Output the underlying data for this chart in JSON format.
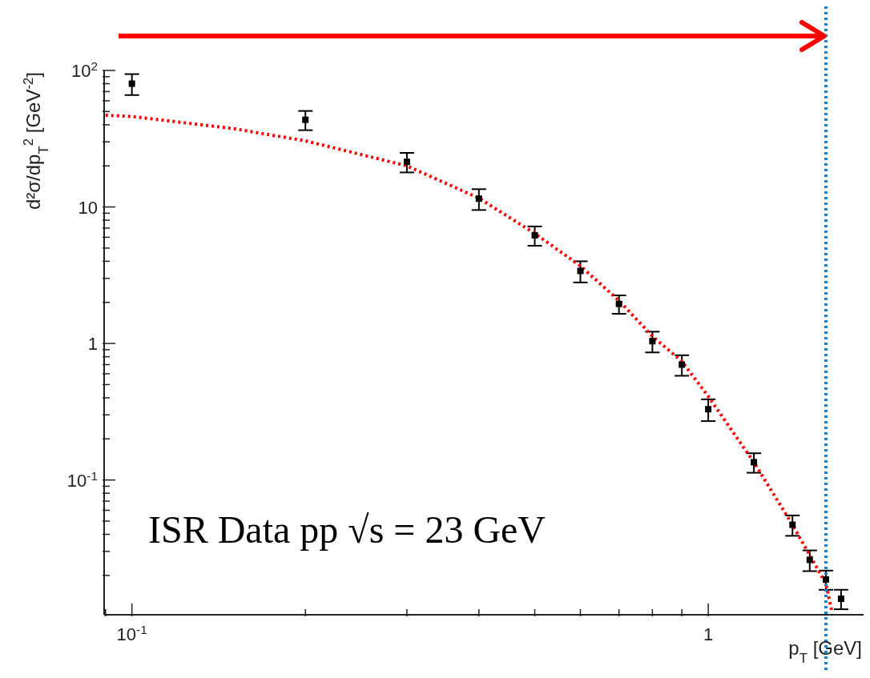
{
  "chart_data": {
    "type": "scatter",
    "xlabel": "p$_{T}$ [GeV]",
    "ylabel": "d²σ/dp$_{T}$$^{2}$ [GeV$^{-2}$]",
    "log": "xy",
    "xlim": [
      0.0895,
      1.86
    ],
    "ylim": [
      0.0103,
      100
    ],
    "xticks": [
      {
        "value": 0.09,
        "label": null
      },
      {
        "value": 0.1,
        "label": "10$^{-1}$"
      },
      {
        "value": 0.2,
        "label": null
      },
      {
        "value": 0.3,
        "label": null
      },
      {
        "value": 0.4,
        "label": null
      },
      {
        "value": 0.5,
        "label": null
      },
      {
        "value": 0.6,
        "label": null
      },
      {
        "value": 0.7,
        "label": null
      },
      {
        "value": 0.8,
        "label": null
      },
      {
        "value": 0.9,
        "label": null
      },
      {
        "value": 1,
        "label": "1"
      }
    ],
    "yticks": [
      {
        "value": 0.02,
        "label": null
      },
      {
        "value": 0.03,
        "label": null
      },
      {
        "value": 0.04,
        "label": null
      },
      {
        "value": 0.05,
        "label": null
      },
      {
        "value": 0.06,
        "label": null
      },
      {
        "value": 0.07,
        "label": null
      },
      {
        "value": 0.08,
        "label": null
      },
      {
        "value": 0.09,
        "label": null
      },
      {
        "value": 0.1,
        "label": "10$^{-1}$"
      },
      {
        "value": 0.2,
        "label": null
      },
      {
        "value": 0.3,
        "label": null
      },
      {
        "value": 0.4,
        "label": null
      },
      {
        "value": 0.5,
        "label": null
      },
      {
        "value": 0.6,
        "label": null
      },
      {
        "value": 0.7,
        "label": null
      },
      {
        "value": 0.8,
        "label": null
      },
      {
        "value": 0.9,
        "label": null
      },
      {
        "value": 1,
        "label": "1"
      },
      {
        "value": 2,
        "label": null
      },
      {
        "value": 3,
        "label": null
      },
      {
        "value": 4,
        "label": null
      },
      {
        "value": 5,
        "label": null
      },
      {
        "value": 6,
        "label": null
      },
      {
        "value": 7,
        "label": null
      },
      {
        "value": 8,
        "label": null
      },
      {
        "value": 9,
        "label": null
      },
      {
        "value": 10,
        "label": "10"
      },
      {
        "value": 20,
        "label": null
      },
      {
        "value": 30,
        "label": null
      },
      {
        "value": 40,
        "label": null
      },
      {
        "value": 50,
        "label": null
      },
      {
        "value": 60,
        "label": null
      },
      {
        "value": 70,
        "label": null
      },
      {
        "value": 80,
        "label": null
      },
      {
        "value": 90,
        "label": null
      },
      {
        "value": 100,
        "label": "10$^{2}$"
      }
    ],
    "series": [
      {
        "color": "#000000",
        "marker": "square",
        "x": [
          0.1,
          0.2,
          0.3,
          0.4,
          0.5,
          0.6,
          0.7,
          0.8,
          0.9,
          1.0,
          1.2,
          1.4,
          1.5,
          1.6,
          1.7
        ],
        "values": [
          80,
          43.5,
          21.4,
          11.5,
          6.2,
          3.4,
          1.95,
          1.04,
          0.7,
          0.33,
          0.135,
          0.047,
          0.026,
          0.0187,
          0.0135
        ],
        "errors": [
          14,
          7,
          3.5,
          2,
          1,
          0.6,
          0.3,
          0.18,
          0.12,
          0.06,
          0.022,
          0.008,
          0.0045,
          0.003,
          0.0022
        ]
      },
      {
        "type": "line",
        "color": "#ff0000",
        "marker": "none",
        "line_style": "dotted",
        "x": [
          0.09,
          0.1,
          0.15,
          0.2,
          0.3,
          0.4,
          0.5,
          0.6,
          0.7,
          0.8,
          0.9,
          1.0,
          1.2,
          1.4,
          1.6,
          1.64
        ],
        "values": [
          47,
          46,
          37.5,
          30.5,
          20,
          11.6,
          6.4,
          3.7,
          2.06,
          1.13,
          0.74,
          0.41,
          0.135,
          0.047,
          0.0174,
          0.0107
        ]
      }
    ],
    "ref_lines": [
      {
        "axis": "x",
        "value": 1.6,
        "color": "#1a7fd0",
        "line_style": "dotted"
      }
    ],
    "annotations": [
      "ISR Data pp √s = 23 GeV"
    ]
  }
}
